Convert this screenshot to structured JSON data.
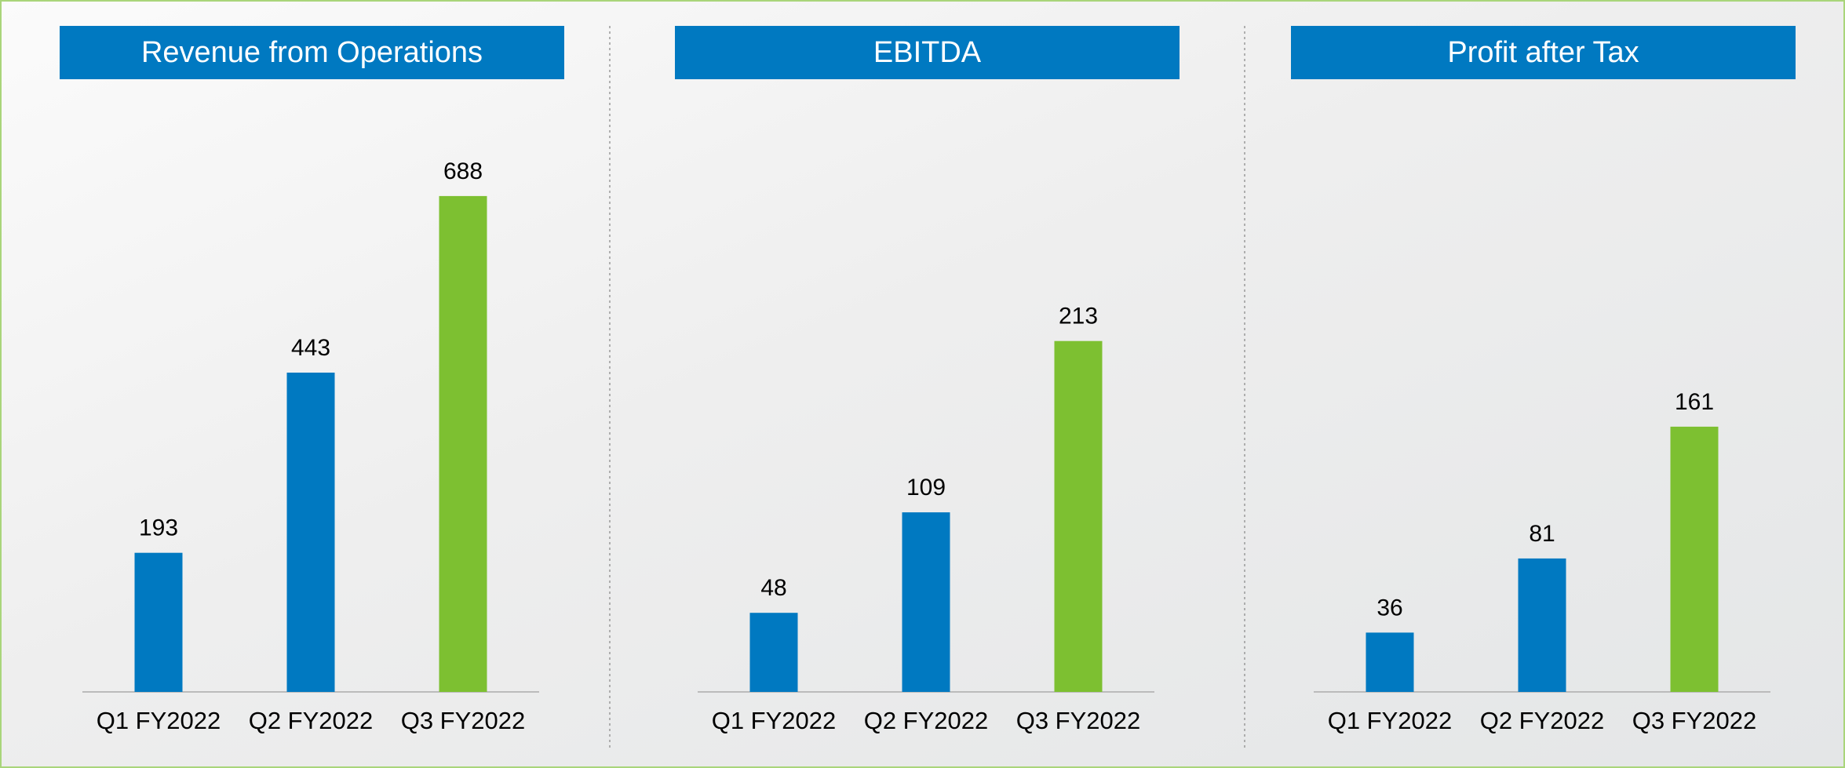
{
  "chart_data": [
    {
      "type": "bar",
      "title": "Revenue from Operations",
      "categories": [
        "Q1 FY2022",
        "Q2 FY2022",
        "Q3 FY2022"
      ],
      "values": [
        193,
        443,
        688
      ],
      "colors": [
        "#0079c1",
        "#0079c1",
        "#7dc031"
      ],
      "ylim": [
        0,
        800
      ]
    },
    {
      "type": "bar",
      "title": "EBITDA",
      "categories": [
        "Q1 FY2022",
        "Q2 FY2022",
        "Q3 FY2022"
      ],
      "values": [
        48,
        109,
        213
      ],
      "colors": [
        "#0079c1",
        "#0079c1",
        "#7dc031"
      ],
      "ylim": [
        0,
        350
      ]
    },
    {
      "type": "bar",
      "title": "Profit after Tax",
      "categories": [
        "Q1 FY2022",
        "Q2 FY2022",
        "Q3 FY2022"
      ],
      "values": [
        36,
        81,
        161
      ],
      "colors": [
        "#0079c1",
        "#0079c1",
        "#7dc031"
      ],
      "ylim": [
        0,
        350
      ]
    }
  ]
}
